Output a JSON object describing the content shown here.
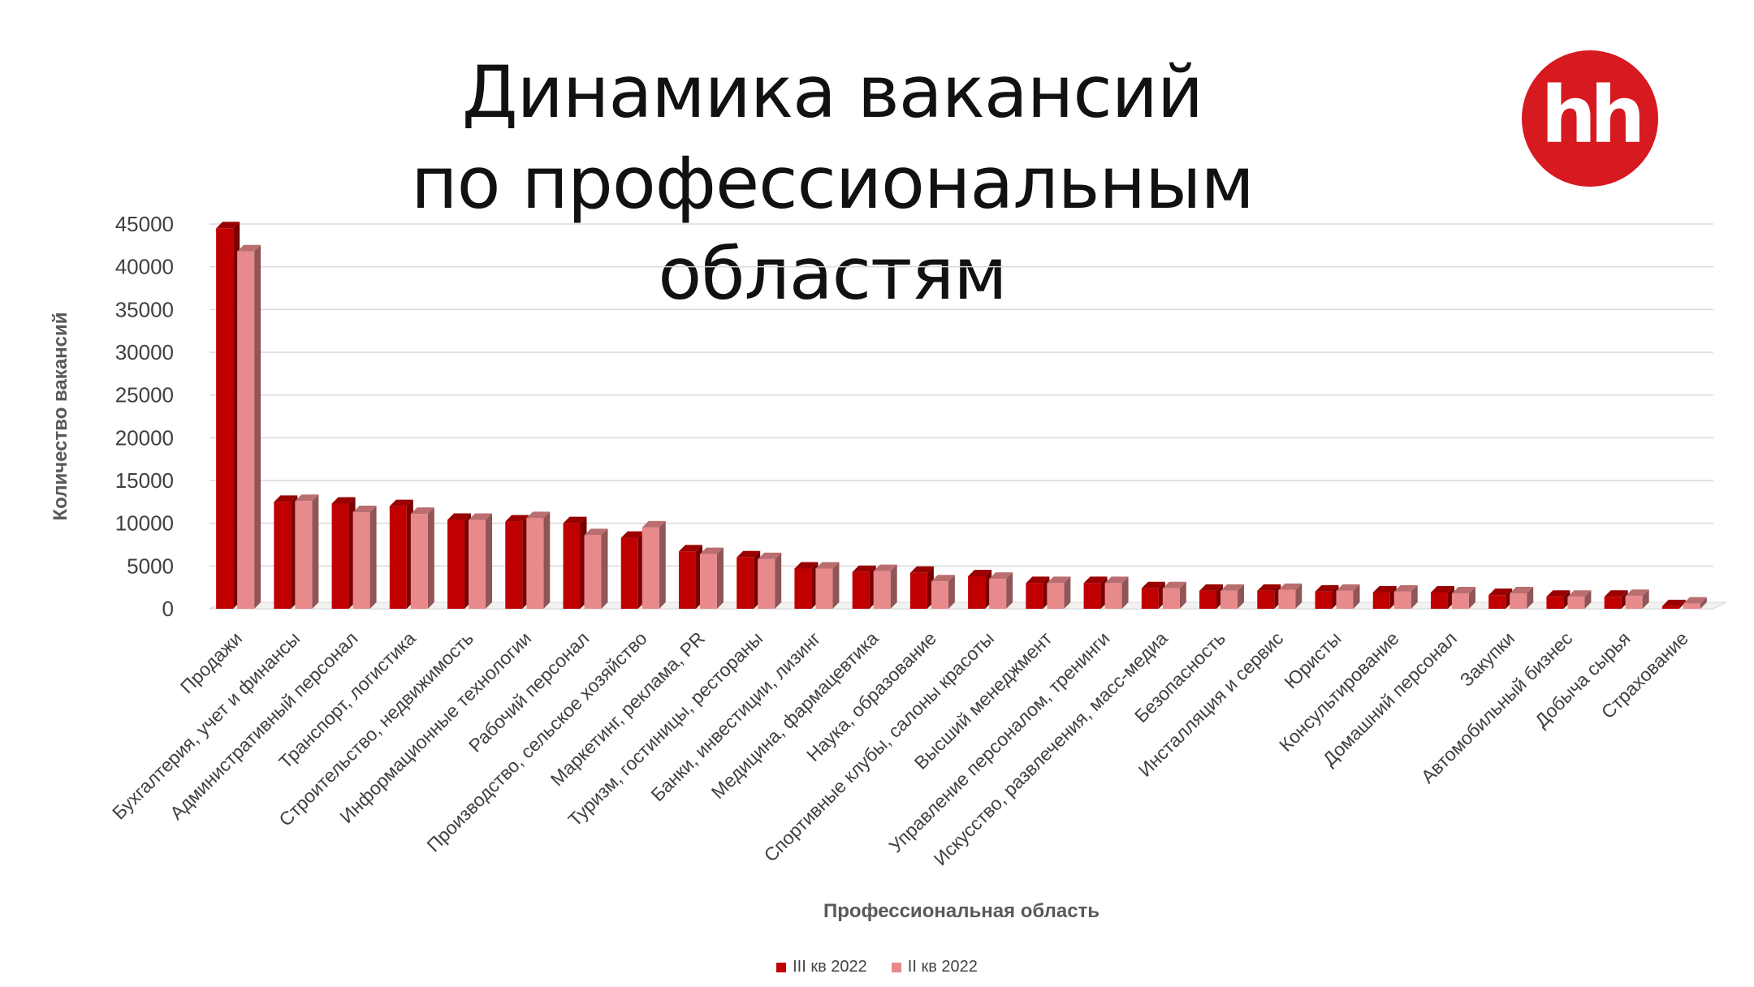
{
  "title": {
    "line1": "Динамика вакансий",
    "line2": "по профессиональным областям"
  },
  "logo": {
    "text": "hh",
    "color": "#d71920"
  },
  "chart_data": {
    "type": "bar",
    "xlabel": "Профессиональная область",
    "ylabel": "Количество вакансий",
    "ylim": [
      0,
      45000
    ],
    "yticks": [
      0,
      5000,
      10000,
      15000,
      20000,
      25000,
      30000,
      35000,
      40000,
      45000
    ],
    "grid": true,
    "legend_position": "bottom",
    "categories": [
      "Продажи",
      "Бухгалтерия, учет и финансы",
      "Административный персонал",
      "Транспорт, логистика",
      "Строительство, недвижимость",
      "Информационные технологии",
      "Рабочий персонал",
      "Производство, сельское хозяйство",
      "Маркетинг, реклама, PR",
      "Туризм, гостиницы, рестораны",
      "Банки, инвестиции, лизинг",
      "Медицина, фармацевтика",
      "Наука, образование",
      "Спортивные клубы, салоны красоты",
      "Высший менеджмент",
      "Управление персоналом, тренинги",
      "Искусство, развлечения, масс-медиа",
      "Безопасность",
      "Инсталляция и сервис",
      "Юристы",
      "Консультирование",
      "Домашний персонал",
      "Закупки",
      "Автомобильный бизнес",
      "Добыча сырья",
      "Страхование"
    ],
    "series": [
      {
        "name": "III кв 2022",
        "color": "#c00000",
        "values": [
          44500,
          12500,
          12300,
          12000,
          10400,
          10200,
          10000,
          8300,
          6700,
          6000,
          4700,
          4300,
          4200,
          3800,
          3000,
          3000,
          2400,
          2100,
          2100,
          2000,
          1900,
          1900,
          1600,
          1400,
          1400,
          300
        ]
      },
      {
        "name": "II кв 2022",
        "color": "#e8898c",
        "values": [
          41800,
          12600,
          11300,
          11100,
          10400,
          10600,
          8600,
          9500,
          6400,
          5800,
          4700,
          4400,
          3200,
          3500,
          3000,
          3000,
          2400,
          2100,
          2200,
          2100,
          2000,
          1800,
          1800,
          1400,
          1500,
          600
        ]
      }
    ]
  }
}
